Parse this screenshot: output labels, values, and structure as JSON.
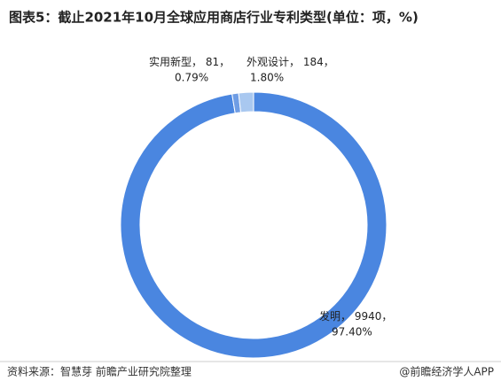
{
  "chart_data": {
    "type": "donut",
    "title": "图表5：截止2021年10月全球应用商店行业专利类型(单位：项，%)",
    "categories": [
      "发明",
      "实用新型",
      "外观设计"
    ],
    "values": [
      9940,
      81,
      184
    ],
    "percents": [
      97.4,
      0.79,
      1.8
    ],
    "percent_labels": [
      "97.40%",
      "0.79%",
      "1.80%"
    ],
    "colors": [
      "#4a86e0",
      "#6f9de4",
      "#a9c8f0"
    ],
    "source": "资料来源：智慧芽 前瞻产业研究院整理",
    "credit": "@前瞻经济学人APP"
  }
}
